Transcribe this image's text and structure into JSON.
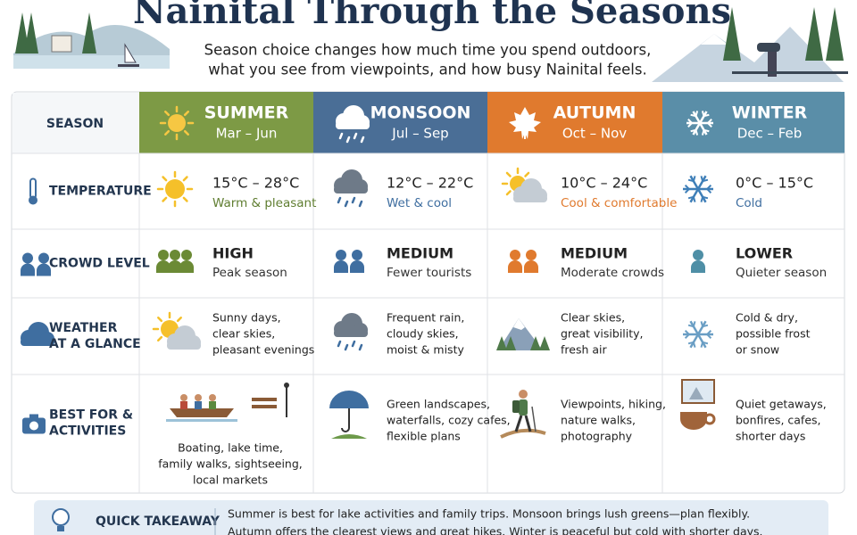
{
  "header": {
    "title": "Nainital Through the Seasons",
    "subtitle": [
      "Season choice changes how much time you spend outdoors,",
      "what you see from viewpoints, and how busy Nainital feels."
    ]
  },
  "table": {
    "corner": "SEASON",
    "columns": [
      {
        "name": "SUMMER",
        "months": "Mar – Jun"
      },
      {
        "name": "MONSOON",
        "months": "Jul – Sep"
      },
      {
        "name": "AUTUMN",
        "months": "Oct – Nov"
      },
      {
        "name": "WINTER",
        "months": "Dec – Feb"
      }
    ],
    "rows": [
      {
        "label": [
          "TEMPERATURE"
        ],
        "cells": [
          {
            "main": "15°C – 28°C",
            "sub": "Warm & pleasant"
          },
          {
            "main": "12°C – 22°C",
            "sub": "Wet & cool"
          },
          {
            "main": "10°C – 24°C",
            "sub": "Cool & comfortable"
          },
          {
            "main": "0°C – 15°C",
            "sub": "Cold"
          }
        ]
      },
      {
        "label": [
          "CROWD LEVEL"
        ],
        "cells": [
          {
            "main": "HIGH",
            "sub": "Peak season"
          },
          {
            "main": "MEDIUM",
            "sub": "Fewer tourists"
          },
          {
            "main": "MEDIUM",
            "sub": "Moderate crowds"
          },
          {
            "main": "LOWER",
            "sub": "Quieter season"
          }
        ]
      },
      {
        "label": [
          "WEATHER",
          "AT A GLANCE"
        ],
        "cells": [
          {
            "lines": [
              "Sunny days,",
              "clear skies,",
              "pleasant evenings"
            ]
          },
          {
            "lines": [
              "Frequent rain,",
              "cloudy skies,",
              "moist & misty"
            ]
          },
          {
            "lines": [
              "Clear skies,",
              "great visibility,",
              "fresh air"
            ]
          },
          {
            "lines": [
              "Cold & dry,",
              "possible frost",
              "or snow"
            ]
          }
        ]
      },
      {
        "label": [
          "BEST FOR &",
          "ACTIVITIES"
        ],
        "cells": [
          {
            "lines": [
              "Boating, lake time,",
              "family walks, sightseeing,",
              "local markets"
            ]
          },
          {
            "lines": [
              "Green landscapes,",
              "waterfalls, cozy cafes,",
              "flexible plans"
            ]
          },
          {
            "lines": [
              "Viewpoints, hiking,",
              "nature walks,",
              "photography"
            ]
          },
          {
            "lines": [
              "Quiet getaways,",
              "bonfires, cafes,",
              "shorter days"
            ]
          }
        ]
      }
    ]
  },
  "takeaway": {
    "label": "QUICK TAKEAWAY",
    "text": [
      "Summer is best for lake activities and family trips.  Monsoon brings lush greens—plan flexibly.",
      "Autumn offers the clearest views and great hikes. Winter is peaceful but cold with shorter days."
    ]
  }
}
